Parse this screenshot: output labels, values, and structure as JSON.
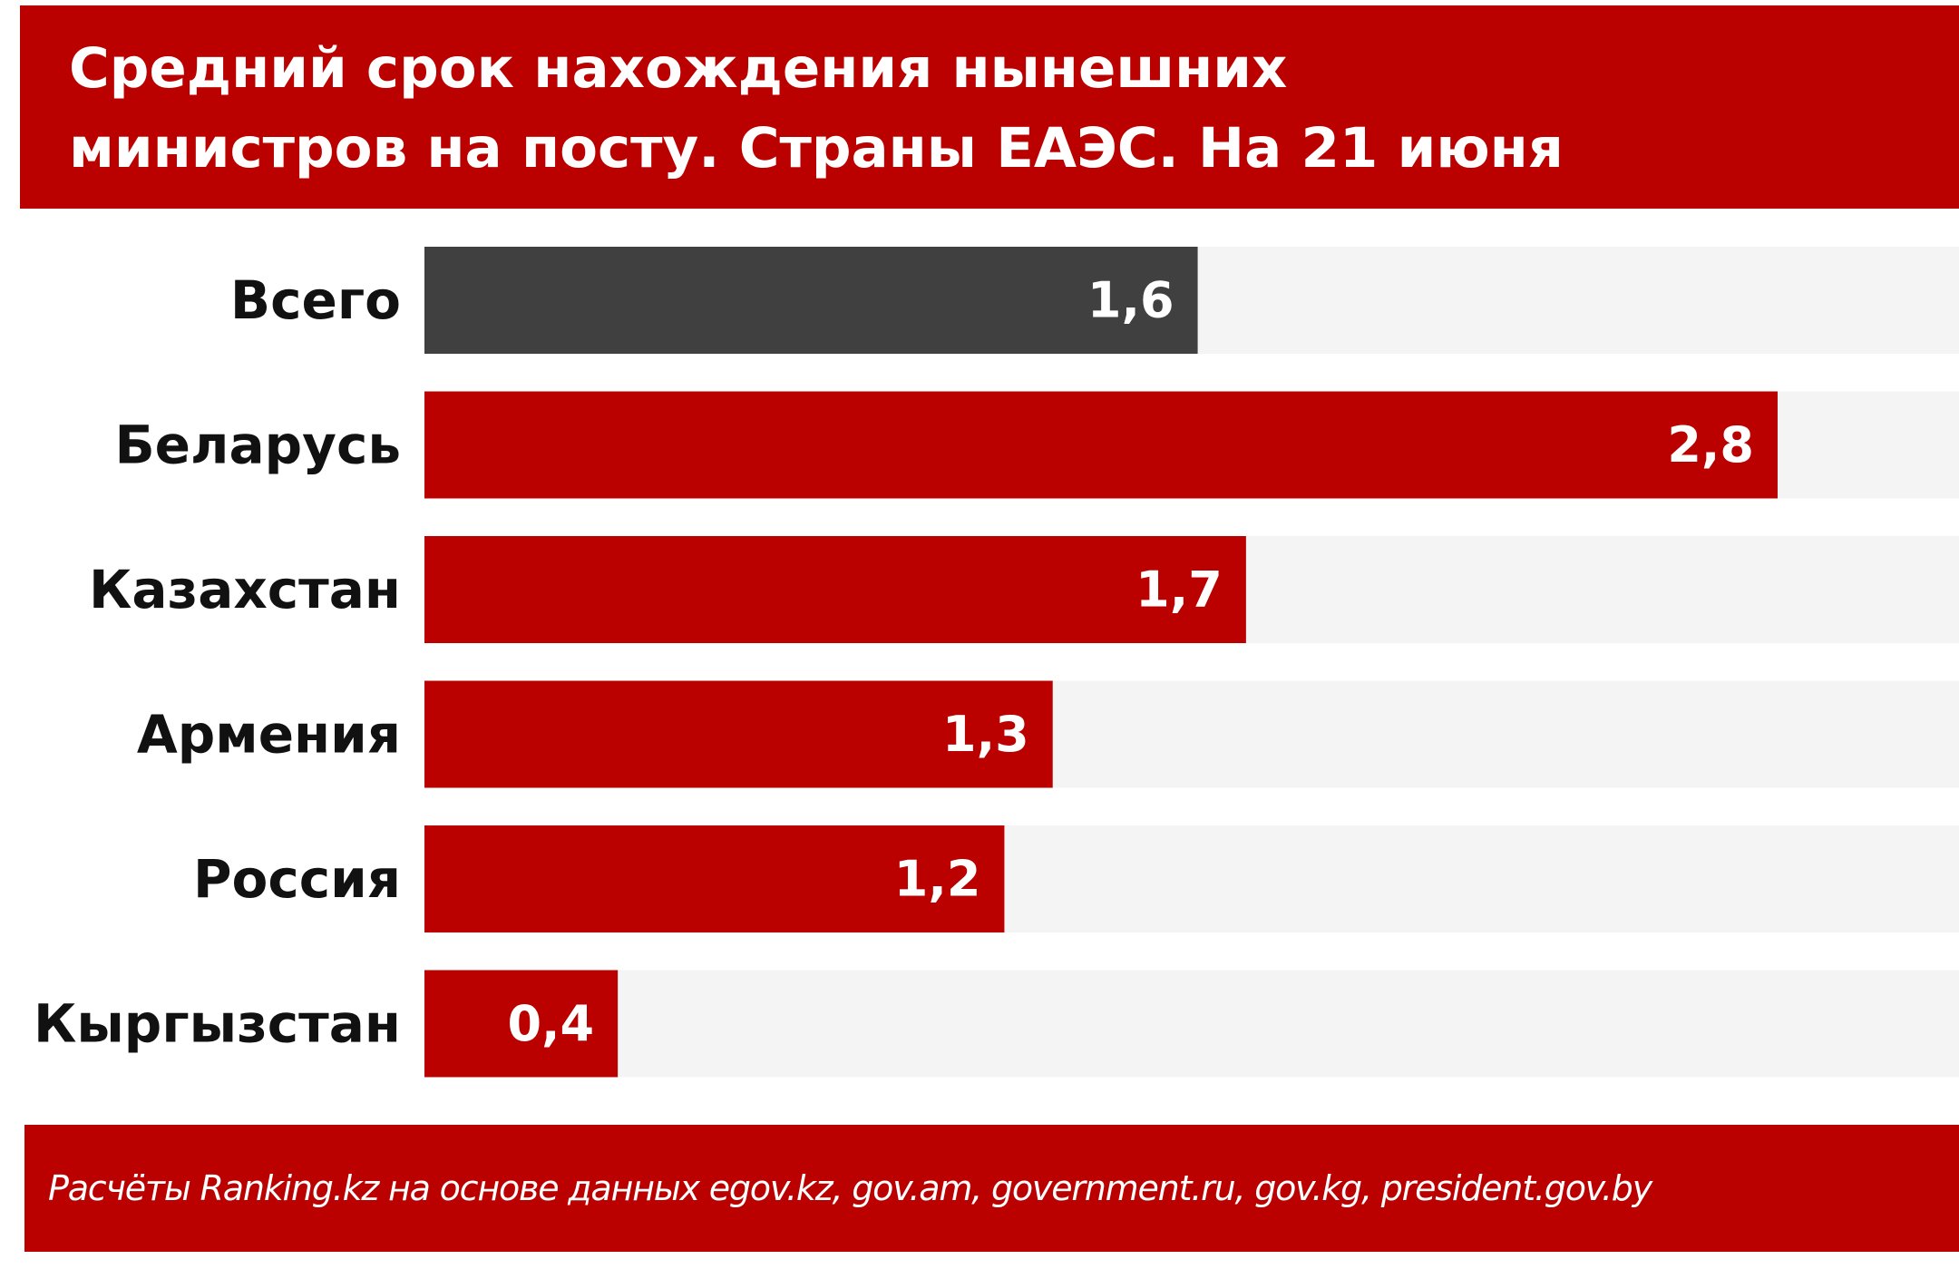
{
  "header": {
    "title": "Средний срок нахождения нынешних\nминистров на посту. Страны ЕАЭС. На 21 июня"
  },
  "footer": {
    "source": "Расчёты Ranking.kz на основе данных egov.kz, gov.am, government.ru, gov.kg, president.gov.by"
  },
  "colors": {
    "header_bg": "#bb0000",
    "bar_default": "#bb0000",
    "bar_highlight": "#404040",
    "track": "#f4f4f4",
    "value_text": "#ffffff",
    "category_text": "#111111"
  },
  "chart_data": {
    "type": "bar",
    "orientation": "horizontal",
    "title": "Средний срок нахождения нынешних министров на посту. Страны ЕАЭС. На 21 июня",
    "categories": [
      "Всего",
      "Беларусь",
      "Казахстан",
      "Армения",
      "Россия",
      "Кыргызстан"
    ],
    "values": [
      1.6,
      2.8,
      1.7,
      1.3,
      1.2,
      0.4
    ],
    "value_labels": [
      "1,6",
      "2,8",
      "1,7",
      "1,3",
      "1,2",
      "0,4"
    ],
    "highlight_index": 0,
    "xlim": [
      0,
      4.0
    ],
    "grid": false,
    "legend": "none",
    "xlabel": "",
    "ylabel": ""
  }
}
